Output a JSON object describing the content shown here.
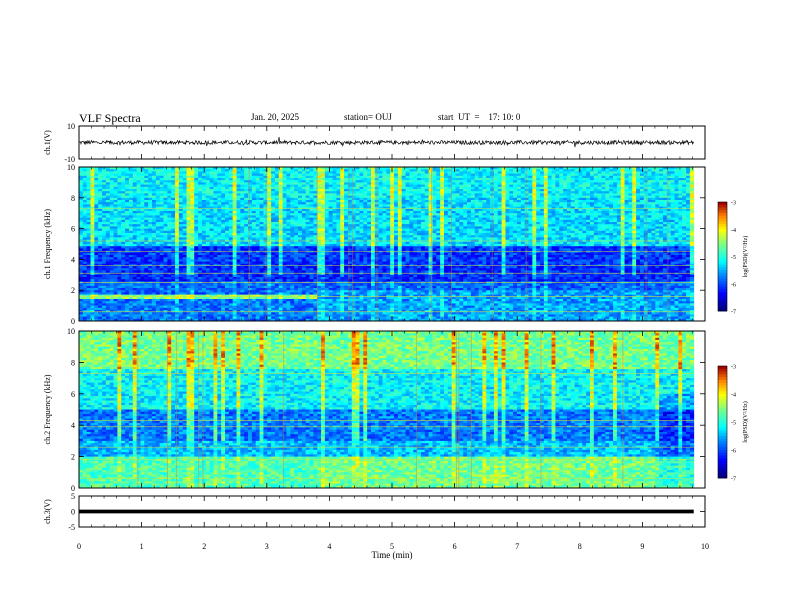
{
  "header": {
    "title": "VLF Spectra",
    "date": "Jan. 20, 2025",
    "station": "station= OUJ",
    "start": "start  UT  =    17: 10: 0"
  },
  "chart_data": {
    "type": "heatmap",
    "x_axis": {
      "label": "Time  (min)",
      "range": [
        0,
        10
      ],
      "ticks": [
        "0",
        "1",
        "2",
        "3",
        "4",
        "5",
        "6",
        "7",
        "8",
        "9",
        "10"
      ]
    },
    "panels": [
      {
        "id": "ch1-waveform",
        "type": "line",
        "ylabel": "ch.1(V)",
        "ylim": [
          -10,
          10
        ],
        "yticks": [
          "10",
          "-10"
        ],
        "data_end_min": 9.82
      },
      {
        "id": "ch1-spectrogram",
        "type": "heatmap",
        "ylabel": "ch.1  Frequency (kHz)",
        "ylim": [
          0,
          10
        ],
        "yticks": [
          "0",
          "2",
          "4",
          "6",
          "8",
          "10"
        ],
        "data_end_min": 9.82,
        "colorbar": {
          "label": "log(PSD)(V²/Hz)",
          "range": [
            -7,
            -3
          ],
          "ticks": [
            "-3",
            "-4",
            "-5",
            "-6",
            "-7"
          ]
        }
      },
      {
        "id": "ch2-spectrogram",
        "type": "heatmap",
        "ylabel": "ch.2  Frequency (kHz)",
        "ylim": [
          0,
          10
        ],
        "yticks": [
          "0",
          "2",
          "4",
          "6",
          "8",
          "10"
        ],
        "data_end_min": 9.82,
        "colorbar": {
          "label": "log(PSD)(V²/Hz)",
          "range": [
            -7,
            -3
          ],
          "ticks": [
            "-3",
            "-4",
            "-5",
            "-6",
            "-7"
          ]
        }
      },
      {
        "id": "ch3-waveform",
        "type": "line",
        "ylabel": "ch.3(V)",
        "ylim": [
          -5,
          5
        ],
        "yticks": [
          "5",
          "0",
          "-5"
        ],
        "data_end_min": 9.82
      }
    ],
    "grid": false
  }
}
